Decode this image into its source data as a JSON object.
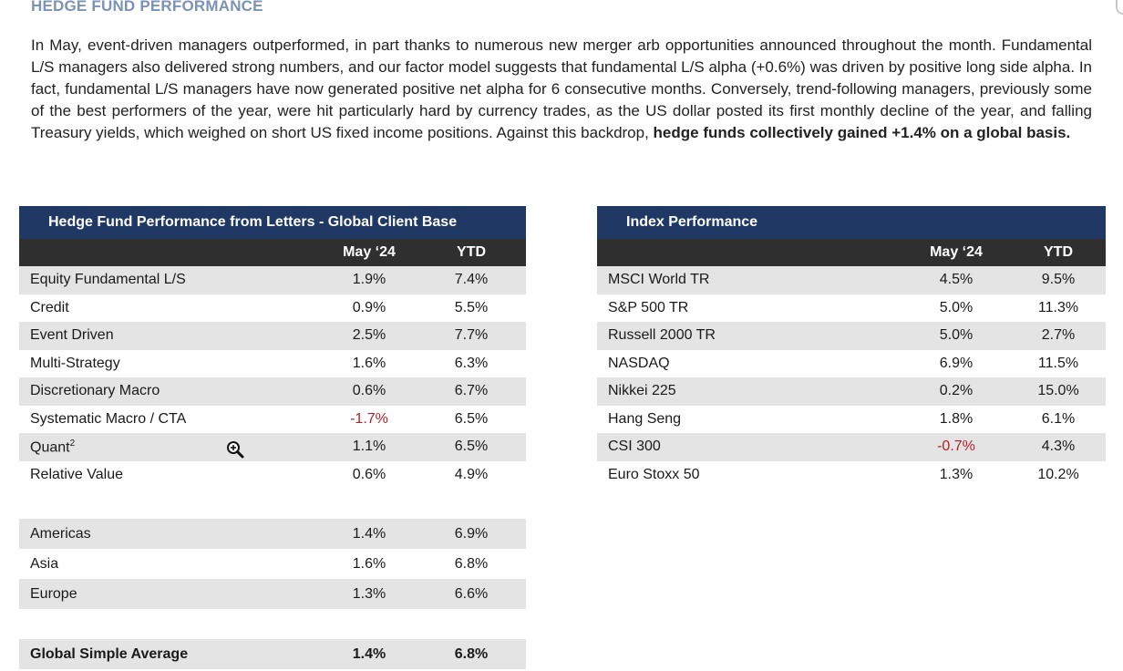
{
  "section_title": "HEDGE FUND PERFORMANCE",
  "paragraph": {
    "text": "In May, event-driven managers outperformed, in part thanks to numerous new merger arb opportunities announced throughout the month. Fundamental L/S managers also delivered strong numbers, and our factor model suggests that fundamental L/S alpha (+0.6%) was driven by positive long side alpha. In fact, fundamental L/S managers have now generated positive net alpha for 6 consecutive months. Conversely, trend-following managers, previously some of the best performers of the year, were hit particularly hard by currency trades, as the US dollar posted its first monthly decline of the year, and falling Treasury yields, which weighed on short US fixed income positions. Against this backdrop, ",
    "bold_text": "hedge funds collectively gained +1.4% on a global basis",
    "end": "."
  },
  "hedge_table": {
    "title": "Hedge Fund Performance from Letters - Global Client Base",
    "col_may": "May ‘24",
    "col_ytd": "YTD",
    "strategies": [
      {
        "label": "Equity Fundamental L/S",
        "may": "1.9%",
        "ytd": "7.4%"
      },
      {
        "label": "Credit",
        "may": "0.9%",
        "ytd": "5.5%"
      },
      {
        "label": "Event Driven",
        "may": "2.5%",
        "ytd": "7.7%"
      },
      {
        "label": "Multi-Strategy",
        "may": "1.6%",
        "ytd": "6.3%"
      },
      {
        "label": "Discretionary Macro",
        "may": "0.6%",
        "ytd": "6.7%"
      },
      {
        "label": "Systematic Macro / CTA",
        "may": "-1.7%",
        "ytd": "6.5%"
      },
      {
        "label": "Quant",
        "sup": "2",
        "may": "1.1%",
        "ytd": "6.5%"
      },
      {
        "label": "Relative Value",
        "may": "0.6%",
        "ytd": "4.9%"
      }
    ],
    "regions": [
      {
        "label": "Americas",
        "may": "1.4%",
        "ytd": "6.9%"
      },
      {
        "label": "Asia",
        "may": "1.6%",
        "ytd": "6.8%"
      },
      {
        "label": "Europe",
        "may": "1.3%",
        "ytd": "6.6%"
      }
    ],
    "total": {
      "label": "Global Simple Average",
      "may": "1.4%",
      "ytd": "6.8%"
    }
  },
  "index_table": {
    "title": "Index Performance",
    "col_may": "May ‘24",
    "col_ytd": "YTD",
    "rows": [
      {
        "label": "MSCI World TR",
        "may": "4.5%",
        "ytd": "9.5%"
      },
      {
        "label": "S&P 500 TR",
        "may": "5.0%",
        "ytd": "11.3%"
      },
      {
        "label": "Russell 2000 TR",
        "may": "5.0%",
        "ytd": "2.7%"
      },
      {
        "label": "NASDAQ",
        "may": "6.9%",
        "ytd": "11.5%"
      },
      {
        "label": "Nikkei 225",
        "may": "0.2%",
        "ytd": "15.0%"
      },
      {
        "label": "Hang Seng",
        "may": "1.8%",
        "ytd": "6.1%"
      },
      {
        "label": "CSI 300",
        "may": "-0.7%",
        "ytd": "4.3%"
      },
      {
        "label": "Euro Stoxx 50",
        "may": "1.3%",
        "ytd": "10.2%"
      }
    ]
  },
  "colors": {
    "header_navy": "#1f3864",
    "header_dark": "#2f2f2f",
    "row_shade": "#e4e4e4",
    "negative": "#b3202c",
    "title_blue": "#7b93b6"
  },
  "icons": {
    "cursor": "zoom-in-icon"
  }
}
